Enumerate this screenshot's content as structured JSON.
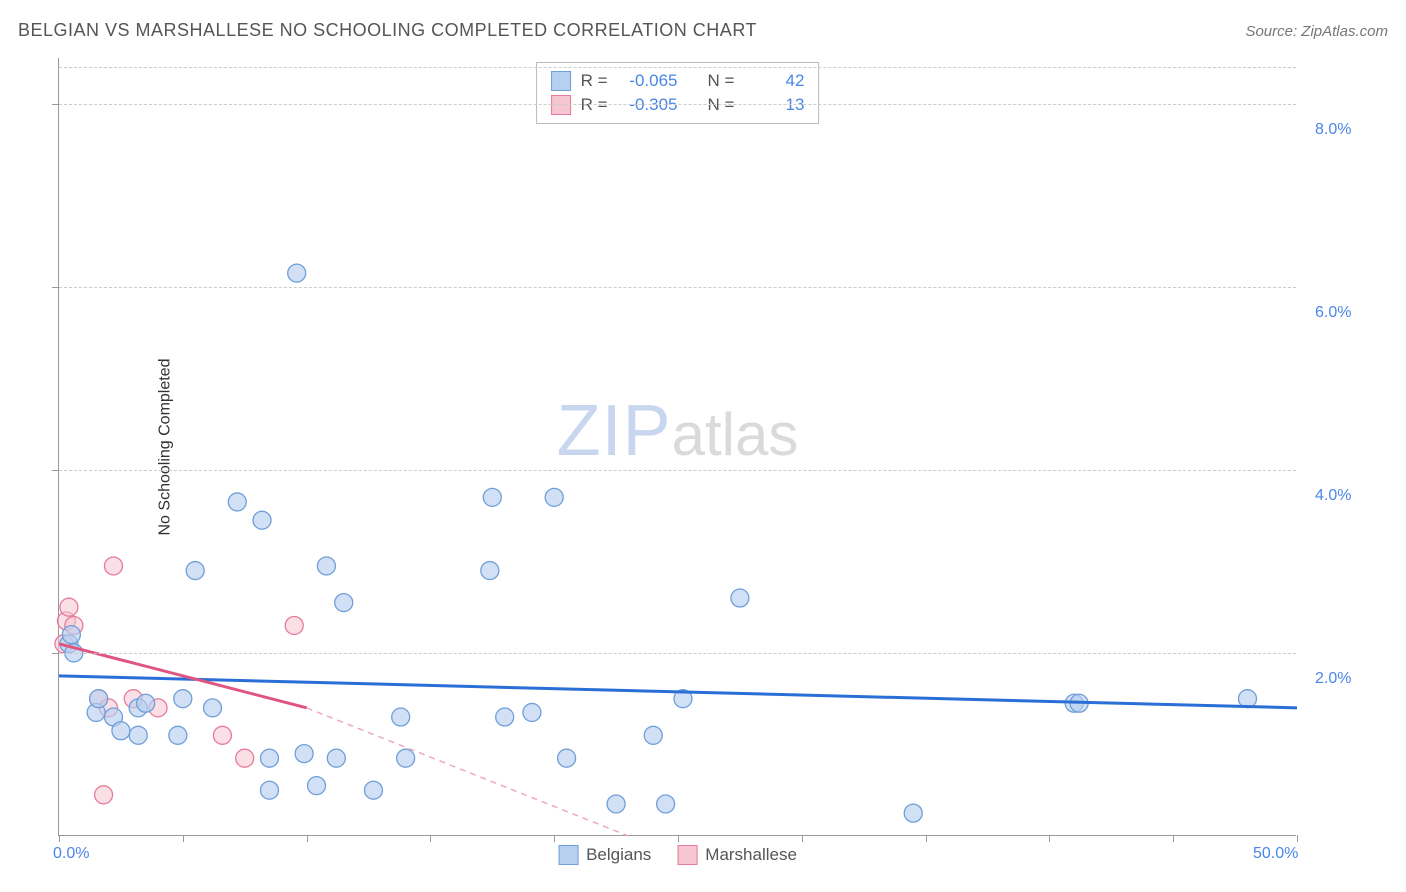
{
  "header": {
    "title": "BELGIAN VS MARSHALLESE NO SCHOOLING COMPLETED CORRELATION CHART",
    "source": "Source: ZipAtlas.com"
  },
  "chart": {
    "ylabel": "No Schooling Completed",
    "watermark": {
      "part1": "ZIP",
      "part2": "atlas"
    },
    "xlim": [
      0,
      50
    ],
    "ylim": [
      0,
      8.5
    ],
    "x_ticks": [
      0,
      5,
      10,
      15,
      20,
      25,
      30,
      35,
      40,
      45,
      50
    ],
    "x_tick_labels": {
      "0": "0.0%",
      "50": "50.0%"
    },
    "y_ticks": [
      2,
      4,
      6,
      8
    ],
    "y_tick_labels": {
      "2": "2.0%",
      "4": "4.0%",
      "6": "6.0%",
      "8": "8.0%"
    },
    "grid_color": "#cccccc",
    "axis_color": "#999999",
    "tick_label_color": "#4a86e8",
    "series": {
      "belgians": {
        "label": "Belgians",
        "fill": "#b8d0f0",
        "stroke": "#6f9fd8",
        "fill_opacity": 0.65,
        "marker_radius": 9,
        "r_value": "-0.065",
        "n_value": "42",
        "trend": {
          "x1": 0,
          "y1": 1.75,
          "x2": 50,
          "y2": 1.4,
          "color": "#2a6fd6",
          "width": 3,
          "dash": "none"
        },
        "points": [
          [
            0.4,
            2.1
          ],
          [
            0.5,
            2.2
          ],
          [
            0.6,
            2.0
          ],
          [
            1.5,
            1.35
          ],
          [
            1.6,
            1.5
          ],
          [
            2.2,
            1.3
          ],
          [
            2.5,
            1.15
          ],
          [
            3.2,
            1.4
          ],
          [
            3.2,
            1.1
          ],
          [
            3.5,
            1.45
          ],
          [
            4.8,
            1.1
          ],
          [
            5.0,
            1.5
          ],
          [
            5.5,
            2.9
          ],
          [
            6.2,
            1.4
          ],
          [
            7.2,
            3.65
          ],
          [
            8.2,
            3.45
          ],
          [
            8.5,
            0.85
          ],
          [
            8.5,
            0.5
          ],
          [
            9.6,
            6.15
          ],
          [
            9.9,
            0.9
          ],
          [
            10.4,
            0.55
          ],
          [
            10.8,
            2.95
          ],
          [
            11.2,
            0.85
          ],
          [
            11.5,
            2.55
          ],
          [
            12.7,
            0.5
          ],
          [
            13.8,
            1.3
          ],
          [
            14.0,
            0.85
          ],
          [
            17.4,
            2.9
          ],
          [
            17.5,
            3.7
          ],
          [
            18.0,
            1.3
          ],
          [
            19.1,
            1.35
          ],
          [
            20.0,
            3.7
          ],
          [
            20.5,
            0.85
          ],
          [
            22.5,
            0.35
          ],
          [
            24.0,
            1.1
          ],
          [
            24.5,
            0.35
          ],
          [
            25.2,
            1.5
          ],
          [
            27.5,
            2.6
          ],
          [
            34.5,
            0.25
          ],
          [
            41.0,
            1.45
          ],
          [
            41.2,
            1.45
          ],
          [
            48.0,
            1.5
          ]
        ]
      },
      "marshallese": {
        "label": "Marshallese",
        "fill": "#f5c5d2",
        "stroke": "#e77a9a",
        "fill_opacity": 0.55,
        "marker_radius": 9,
        "r_value": "-0.305",
        "n_value": "13",
        "trend_solid": {
          "x1": 0,
          "y1": 2.1,
          "x2": 10,
          "y2": 1.4,
          "color": "#e05580",
          "width": 3
        },
        "trend_dash": {
          "x1": 10,
          "y1": 1.4,
          "x2": 23,
          "y2": 0.0,
          "color": "#f0a8bc",
          "width": 1.5,
          "dash": "6,5"
        },
        "points": [
          [
            0.2,
            2.1
          ],
          [
            0.3,
            2.35
          ],
          [
            0.4,
            2.5
          ],
          [
            0.6,
            2.3
          ],
          [
            1.6,
            1.5
          ],
          [
            1.8,
            0.45
          ],
          [
            2.0,
            1.4
          ],
          [
            2.2,
            2.95
          ],
          [
            3.0,
            1.5
          ],
          [
            4.0,
            1.4
          ],
          [
            6.6,
            1.1
          ],
          [
            7.5,
            0.85
          ],
          [
            9.5,
            2.3
          ]
        ]
      }
    },
    "legend_top": {
      "r_label": "R =",
      "n_label": "N ="
    },
    "legend_bottom": {
      "items": [
        "belgians",
        "marshallese"
      ]
    }
  }
}
